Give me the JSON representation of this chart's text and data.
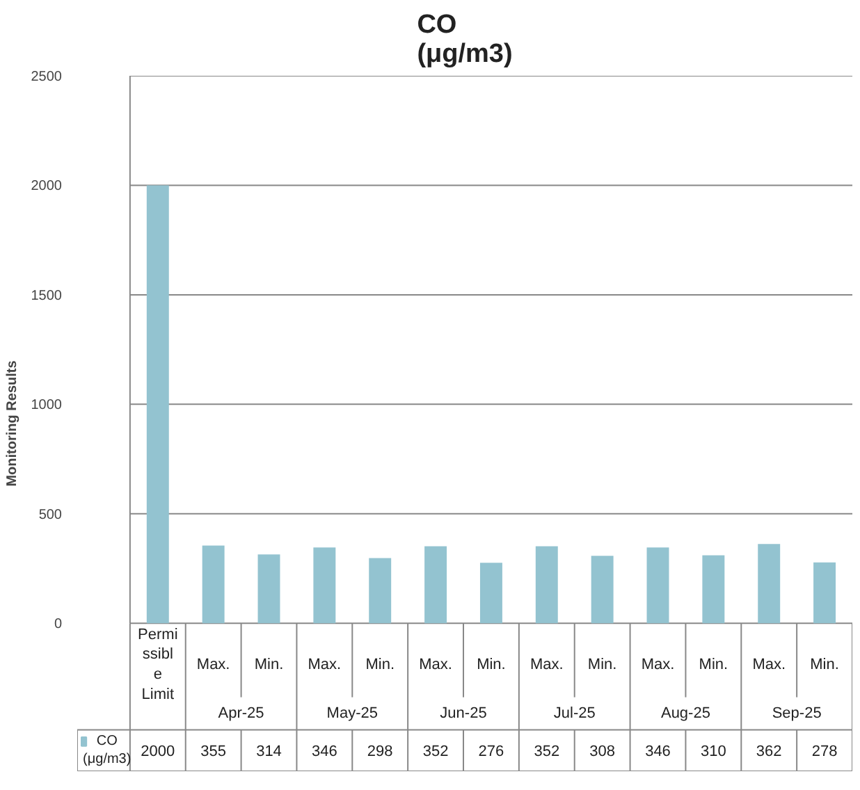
{
  "chart_data": {
    "type": "bar",
    "title": "CO\n(μg/m3)",
    "ylabel": "Monitoring Results",
    "categories": [
      "Permissible Limit",
      "Max.",
      "Min.",
      "Max.",
      "Min.",
      "Max.",
      "Min.",
      "Max.",
      "Min.",
      "Max.",
      "Min.",
      "Max.",
      "Min."
    ],
    "series": [
      {
        "name": "CO (μg/m3)",
        "color": "#93c3d0",
        "values": [
          2000,
          355,
          314,
          346,
          298,
          352,
          276,
          352,
          308,
          346,
          310,
          362,
          278
        ]
      }
    ],
    "annotations": [
      "Apr-25",
      "May-25",
      "Jun-25",
      "Jul-25",
      "Aug-25",
      "Sep-25"
    ],
    "ylim": [
      0,
      2500
    ],
    "yticks": [
      0,
      500,
      1000,
      1500,
      2000,
      2500
    ],
    "grid": "y",
    "data_labels": true
  }
}
